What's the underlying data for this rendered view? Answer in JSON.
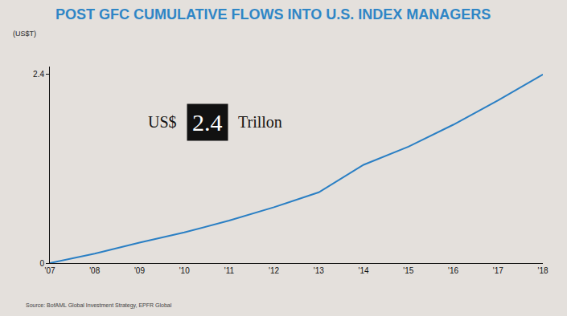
{
  "chart_data": {
    "type": "line",
    "title": "POST GFC CUMULATIVE FLOWS INTO U.S. INDEX MANAGERS",
    "y_label": "(US$T)",
    "categories": [
      "'07",
      "'08",
      "'09",
      "'10",
      "'11",
      "'12",
      "'13",
      "'14",
      "'15",
      "'16",
      "'17",
      "'18"
    ],
    "values": [
      0,
      0.12,
      0.26,
      0.39,
      0.54,
      0.71,
      0.9,
      1.25,
      1.48,
      1.76,
      2.07,
      2.4
    ],
    "color": "#2a7fc4",
    "ylim": [
      0,
      2.5
    ],
    "yticks": [
      0,
      2.4
    ],
    "grid": false,
    "annotation": {
      "prefix": "US$",
      "value": 2.4,
      "suffix": "Trillon"
    },
    "source": "Source: BofAML Global Investment Strategy, EPFR Global"
  }
}
